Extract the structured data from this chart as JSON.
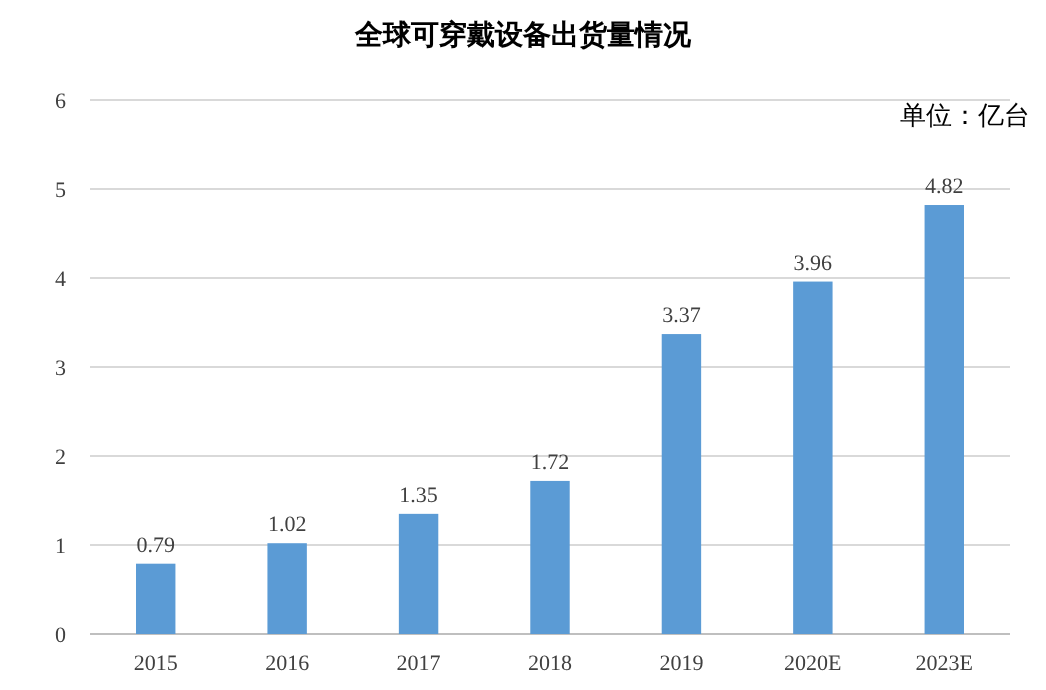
{
  "chart_data": {
    "type": "bar",
    "title": "全球可穿戴设备出货量情况",
    "annotations": [
      "单位：亿台"
    ],
    "categories": [
      "2015",
      "2016",
      "2017",
      "2018",
      "2019",
      "2020E",
      "2023E"
    ],
    "values": [
      0.79,
      1.02,
      1.35,
      1.72,
      3.37,
      3.96,
      4.82
    ],
    "color": "#5b9bd5",
    "ylim": [
      0,
      6
    ],
    "yticks": [
      0,
      1,
      2,
      3,
      4,
      5,
      6
    ],
    "grid": "y",
    "data_labels": true
  }
}
